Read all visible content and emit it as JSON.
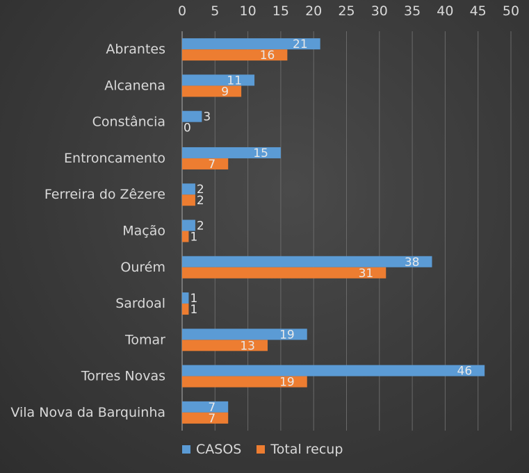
{
  "chart_data": {
    "type": "bar",
    "orientation": "horizontal",
    "categories": [
      "Abrantes",
      "Alcanena",
      "Constância",
      "Entroncamento",
      "Ferreira do Zêzere",
      "Mação",
      "Ourém",
      "Sardoal",
      "Tomar",
      "Torres Novas",
      "Vila Nova da Barquinha"
    ],
    "series": [
      {
        "name": "CASOS",
        "color": "#5b9bd5",
        "values": [
          21,
          11,
          3,
          15,
          2,
          2,
          38,
          1,
          19,
          46,
          7
        ]
      },
      {
        "name": "Total recup",
        "color": "#ed7d31",
        "values": [
          16,
          9,
          0,
          7,
          2,
          1,
          31,
          1,
          13,
          19,
          7
        ]
      }
    ],
    "xlim": [
      0,
      50
    ],
    "xticks": [
      0,
      5,
      10,
      15,
      20,
      25,
      30,
      35,
      40,
      45,
      50
    ],
    "x_axis_position": "top",
    "grid": true,
    "legend_position": "bottom",
    "data_labels": true
  }
}
